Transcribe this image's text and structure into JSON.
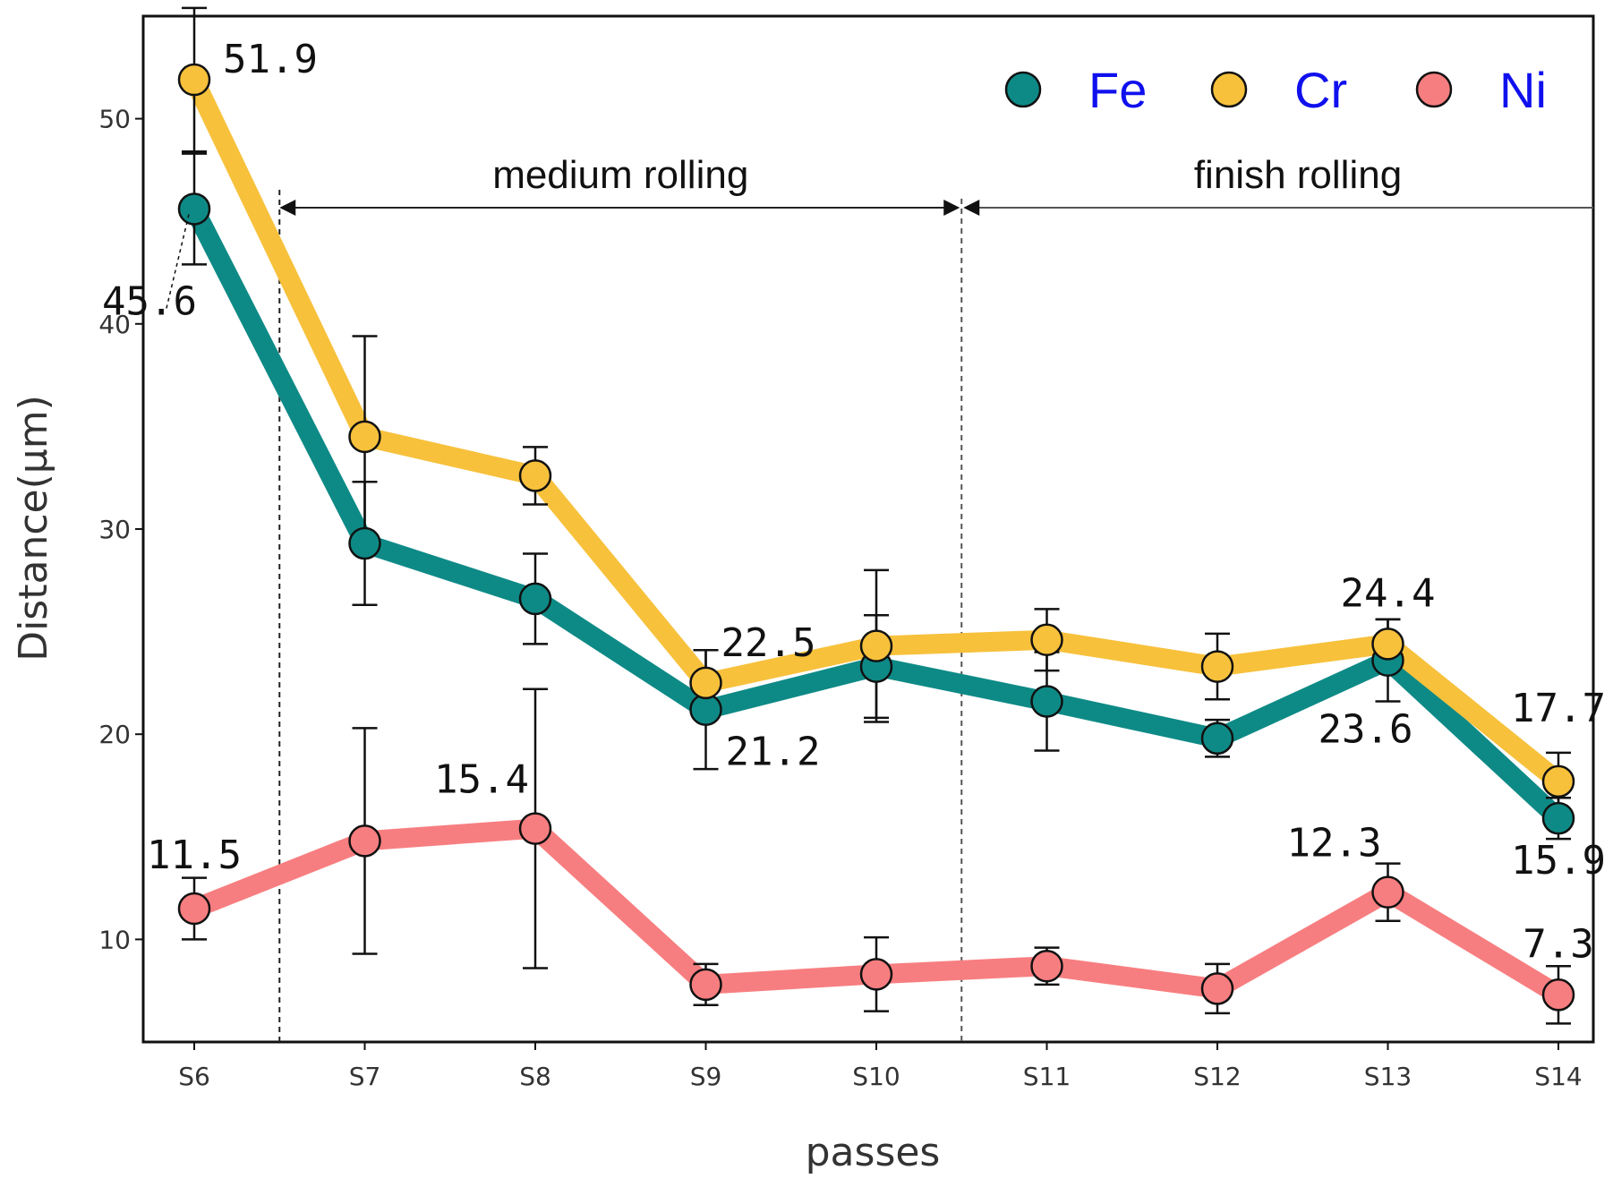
{
  "chart_data": {
    "type": "line",
    "xlabel": "passes",
    "ylabel": "Distance(μm)",
    "categories": [
      "S6",
      "S7",
      "S8",
      "S9",
      "S10",
      "S11",
      "S12",
      "S13",
      "S14"
    ],
    "ylim": [
      5,
      55
    ],
    "yticks": [
      10,
      20,
      30,
      40,
      50
    ],
    "legend": "top-right",
    "series": [
      {
        "name": "Fe",
        "color": "#0e8a86",
        "values": [
          45.6,
          29.3,
          26.6,
          21.2,
          23.3,
          21.6,
          19.8,
          23.6,
          15.9
        ],
        "err": [
          2.7,
          3.0,
          2.2,
          2.9,
          2.5,
          2.4,
          0.9,
          2.0,
          1.0
        ]
      },
      {
        "name": "Cr",
        "color": "#f7c13c",
        "values": [
          51.9,
          34.5,
          32.6,
          22.5,
          24.3,
          24.6,
          23.3,
          24.4,
          17.7
        ],
        "err": [
          3.5,
          4.9,
          1.4,
          1.6,
          3.7,
          1.5,
          1.6,
          1.2,
          1.4
        ]
      },
      {
        "name": "Ni",
        "color": "#f77e80",
        "values": [
          11.5,
          14.8,
          15.4,
          7.8,
          8.3,
          8.7,
          7.6,
          12.3,
          7.3
        ],
        "err": [
          1.5,
          5.5,
          6.8,
          1.0,
          1.8,
          0.9,
          1.2,
          1.4,
          1.4
        ]
      }
    ],
    "data_labels": [
      {
        "series": "Cr",
        "index": 0,
        "text": "51.9",
        "pos": "right"
      },
      {
        "series": "Fe",
        "index": 0,
        "text": "45.6",
        "pos": "below-left"
      },
      {
        "series": "Cr",
        "index": 3,
        "text": "22.5",
        "pos": "above-right"
      },
      {
        "series": "Fe",
        "index": 3,
        "text": "21.2",
        "pos": "below-right"
      },
      {
        "series": "Cr",
        "index": 7,
        "text": "24.4",
        "pos": "above"
      },
      {
        "series": "Fe",
        "index": 7,
        "text": "23.6",
        "pos": "below"
      },
      {
        "series": "Cr",
        "index": 8,
        "text": "17.7",
        "pos": "above"
      },
      {
        "series": "Fe",
        "index": 8,
        "text": "15.9",
        "pos": "below"
      },
      {
        "series": "Ni",
        "index": 0,
        "text": "11.5",
        "pos": "above"
      },
      {
        "series": "Ni",
        "index": 2,
        "text": "15.4",
        "pos": "above-left"
      },
      {
        "series": "Ni",
        "index": 7,
        "text": "12.3",
        "pos": "above-left"
      },
      {
        "series": "Ni",
        "index": 8,
        "text": "7.3",
        "pos": "above"
      }
    ],
    "annotations": [
      {
        "text": "medium rolling",
        "from_pass": 6.5,
        "to_pass": 10.5
      },
      {
        "text": "finish rolling",
        "from_pass": 10.5,
        "to_pass": 14.3
      }
    ]
  }
}
